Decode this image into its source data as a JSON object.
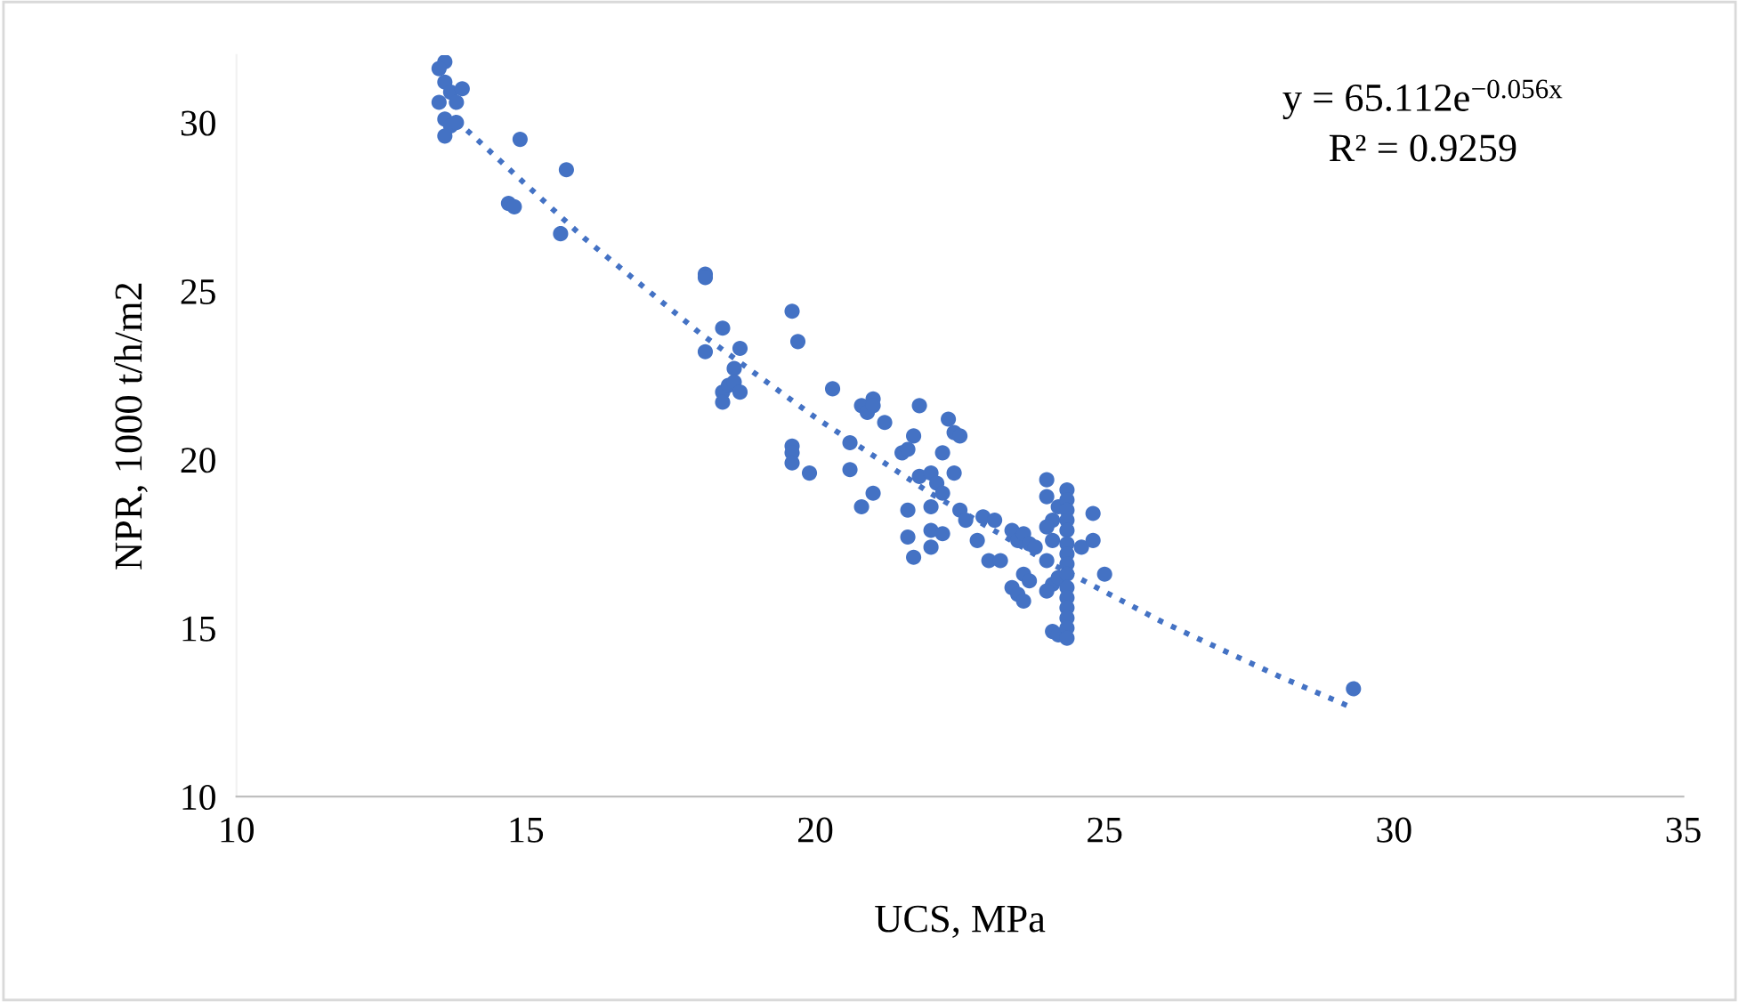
{
  "chart_data": {
    "type": "scatter",
    "xlabel": "UCS, MPa",
    "ylabel": "NPR, 1000 t/h/m2",
    "xlim": [
      10,
      35
    ],
    "xticks": [
      10,
      15,
      20,
      25,
      30,
      35
    ],
    "ylim": [
      10,
      32
    ],
    "yticks": [
      10,
      15,
      20,
      25,
      30
    ],
    "grid": false,
    "legend": false,
    "marker": "circle",
    "series": [
      {
        "color": "#4472c4",
        "x": [
          13.6,
          13.5,
          13.6,
          13.7,
          13.9,
          13.5,
          13.8,
          13.6,
          13.7,
          13.6,
          13.8,
          14.9,
          15.7,
          14.7,
          14.8,
          15.6,
          18.1,
          18.1,
          18.1,
          18.4,
          18.7,
          18.6,
          18.4,
          18.4,
          18.5,
          18.6,
          18.7,
          19.6,
          19.7,
          19.6,
          19.6,
          19.6,
          19.9,
          20.3,
          20.8,
          20.9,
          21.0,
          21.0,
          21.2,
          20.6,
          20.6,
          20.8,
          21.0,
          21.5,
          21.6,
          21.7,
          21.8,
          21.8,
          21.6,
          21.6,
          21.7,
          22.0,
          22.1,
          22.2,
          22.3,
          22.4,
          22.5,
          22.4,
          22.2,
          22.0,
          22.0,
          22.0,
          22.2,
          22.5,
          22.6,
          22.8,
          22.9,
          23.0,
          23.2,
          23.1,
          23.4,
          23.5,
          23.6,
          23.7,
          23.4,
          23.5,
          23.6,
          23.6,
          23.7,
          23.8,
          24.0,
          24.0,
          24.2,
          24.1,
          24.0,
          24.1,
          24.0,
          24.1,
          24.0,
          24.2,
          24.1,
          24.2,
          24.35,
          24.35,
          24.35,
          24.35,
          24.35,
          24.35,
          24.35,
          24.35,
          24.35,
          24.35,
          24.35,
          24.35,
          24.35,
          24.35,
          24.35,
          24.6,
          24.8,
          24.8,
          25.0,
          29.3
        ],
        "values": [
          31.8,
          31.6,
          31.2,
          30.9,
          31.0,
          30.6,
          30.6,
          30.1,
          29.9,
          29.6,
          30.0,
          29.5,
          28.6,
          27.6,
          27.5,
          26.7,
          25.5,
          25.4,
          23.2,
          23.9,
          23.3,
          22.7,
          22.0,
          21.7,
          22.2,
          22.3,
          22.0,
          24.4,
          23.5,
          20.4,
          20.2,
          19.9,
          19.6,
          22.1,
          21.6,
          21.4,
          21.8,
          21.6,
          21.1,
          20.5,
          19.7,
          18.6,
          19.0,
          20.2,
          20.3,
          20.7,
          21.6,
          19.5,
          18.5,
          17.7,
          17.1,
          19.6,
          19.3,
          20.2,
          21.2,
          20.8,
          20.7,
          19.6,
          19.0,
          18.6,
          17.9,
          17.4,
          17.8,
          18.5,
          18.2,
          17.6,
          18.3,
          17.0,
          17.0,
          18.2,
          17.9,
          17.6,
          17.8,
          17.5,
          16.2,
          16.0,
          16.6,
          15.8,
          16.4,
          17.4,
          19.4,
          18.9,
          18.6,
          18.2,
          18.0,
          17.6,
          17.0,
          16.3,
          16.1,
          16.5,
          14.9,
          14.8,
          19.1,
          18.8,
          18.5,
          18.2,
          17.9,
          17.5,
          17.2,
          16.9,
          16.6,
          16.2,
          15.9,
          15.6,
          15.3,
          15.0,
          14.7,
          17.4,
          18.4,
          17.6,
          16.6,
          13.2
        ]
      },
      {
        "type": "line",
        "color": "#4472c4",
        "line_style": "dotted",
        "marker": "none",
        "x": [
          13.8,
          16,
          18,
          20,
          22,
          24,
          26,
          28,
          29.3
        ],
        "values": [
          30.06,
          26.58,
          23.76,
          21.25,
          18.99,
          16.98,
          15.18,
          13.58,
          12.62
        ]
      }
    ],
    "annotations": [
      "y = 65.112e$^{−0.056x}$",
      "R² = 0.9259"
    ]
  }
}
